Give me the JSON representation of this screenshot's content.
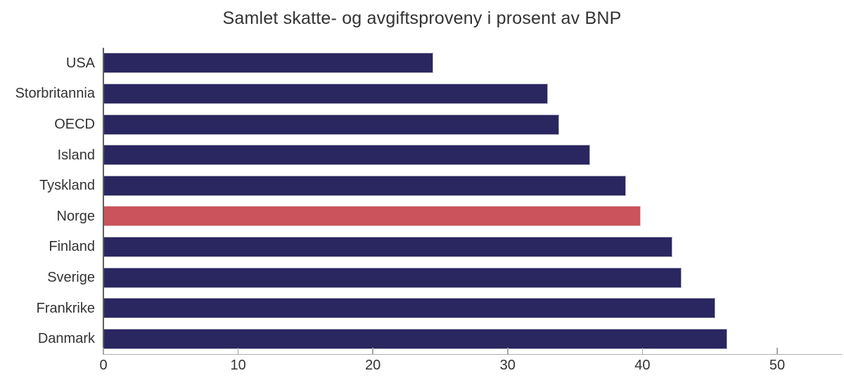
{
  "title": "Samlet skatte- og avgiftsproveny i prosent av BNP",
  "chart_data": {
    "type": "bar",
    "orientation": "horizontal",
    "title": "Samlet skatte- og avgiftsproveny i prosent av BNP",
    "categories": [
      "USA",
      "Storbritannia",
      "OECD",
      "Island",
      "Tyskland",
      "Norge",
      "Finland",
      "Sverige",
      "Frankrike",
      "Danmark"
    ],
    "values": [
      24.5,
      33.0,
      33.8,
      36.1,
      38.8,
      39.9,
      42.2,
      42.9,
      45.4,
      46.3
    ],
    "highlighted_category": "Norge",
    "xlabel": "",
    "ylabel": "",
    "xlim": [
      0,
      54.8
    ],
    "xticks": [
      0,
      10,
      20,
      30,
      40,
      50
    ],
    "grid": false,
    "legend": false,
    "colors": {
      "bar": "#2a265f",
      "highlight": "#ca535c",
      "x_axis_line": "#b0b0b0",
      "y_axis_line": "#5f5f5f",
      "tick": "#a6a6a6",
      "text": "#333333"
    }
  }
}
